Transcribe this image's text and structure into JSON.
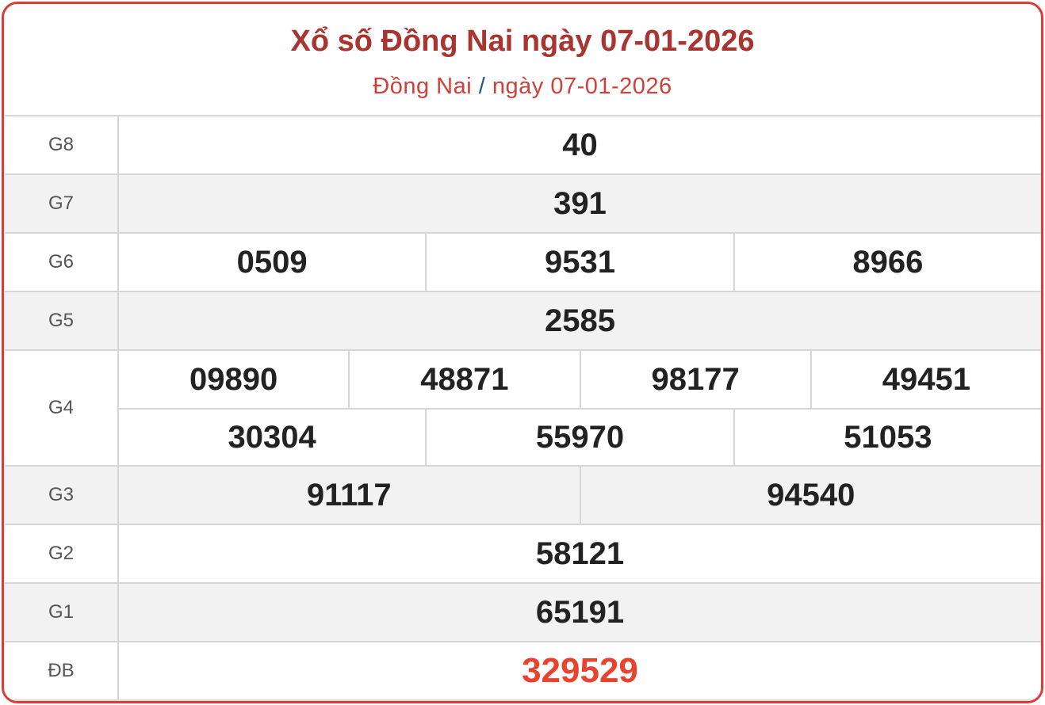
{
  "header": {
    "title": "Xổ số Đồng Nai ngày 07-01-2026",
    "breadcrumb": {
      "province": "Đồng Nai",
      "separator": "/",
      "date": "ngày 07-01-2026"
    }
  },
  "colors": {
    "border": "#de3b36",
    "title": "#a83530",
    "special": "#e8432f"
  },
  "prizes": [
    {
      "label": "G8",
      "rows": [
        [
          "40"
        ]
      ]
    },
    {
      "label": "G7",
      "rows": [
        [
          "391"
        ]
      ]
    },
    {
      "label": "G6",
      "rows": [
        [
          "0509",
          "9531",
          "8966"
        ]
      ]
    },
    {
      "label": "G5",
      "rows": [
        [
          "2585"
        ]
      ]
    },
    {
      "label": "G4",
      "rows": [
        [
          "09890",
          "48871",
          "98177",
          "49451"
        ],
        [
          "30304",
          "55970",
          "51053"
        ]
      ]
    },
    {
      "label": "G3",
      "rows": [
        [
          "91117",
          "94540"
        ]
      ]
    },
    {
      "label": "G2",
      "rows": [
        [
          "58121"
        ]
      ]
    },
    {
      "label": "G1",
      "rows": [
        [
          "65191"
        ]
      ]
    },
    {
      "label": "ĐB",
      "rows": [
        [
          "329529"
        ]
      ]
    }
  ]
}
